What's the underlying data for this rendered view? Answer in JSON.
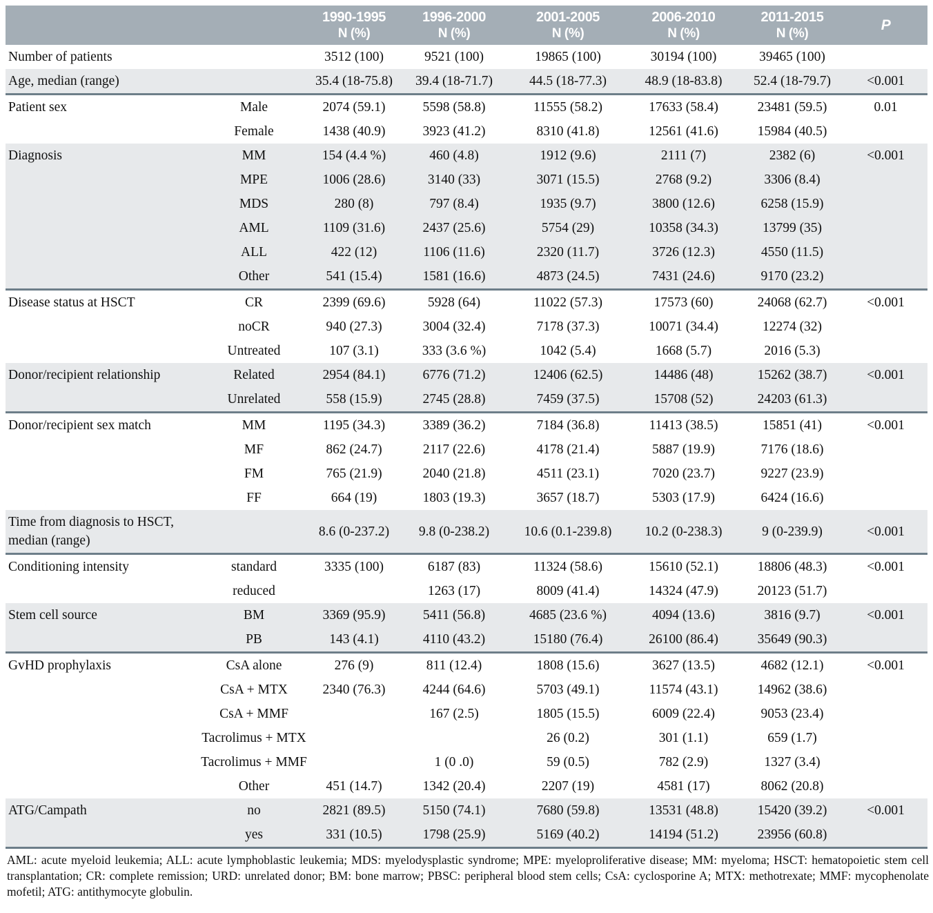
{
  "table": {
    "columns": [
      "1990-1995",
      "1996-2000",
      "2001-2005",
      "2006-2010",
      "2011-2015"
    ],
    "subheader": "N (%)",
    "p_label": "P",
    "groups": [
      {
        "label": "Number of patients",
        "shaded": false,
        "rows": [
          {
            "sub": "",
            "values": [
              "3512 (100)",
              "9521 (100)",
              "19865 (100)",
              "30194 (100)",
              "39465 (100)"
            ],
            "p": ""
          }
        ]
      },
      {
        "label": "Age, median (range)",
        "shaded": true,
        "rows": [
          {
            "sub": "",
            "values": [
              "35.4 (18-75.8)",
              "39.4 (18-71.7)",
              "44.5 (18-77.3)",
              "48.9 (18-83.8)",
              "52.4 (18-79.7)"
            ],
            "p": "<0.001"
          }
        ]
      },
      {
        "label": "Patient sex",
        "shaded": false,
        "rows": [
          {
            "sub": "Male",
            "values": [
              "2074 (59.1)",
              "5598 (58.8)",
              "11555 (58.2)",
              "17633 (58.4)",
              "23481 (59.5)"
            ],
            "p": "0.01"
          },
          {
            "sub": "Female",
            "values": [
              "1438 (40.9)",
              "3923 (41.2)",
              "8310 (41.8)",
              "12561 (41.6)",
              "15984 (40.5)"
            ],
            "p": ""
          }
        ]
      },
      {
        "label": "Diagnosis",
        "shaded": true,
        "rows": [
          {
            "sub": "MM",
            "values": [
              "154 (4.4 %)",
              "460 (4.8)",
              "1912 (9.6)",
              "2111 (7)",
              "2382 (6)"
            ],
            "p": "<0.001"
          },
          {
            "sub": "MPE",
            "values": [
              "1006 (28.6)",
              "3140 (33)",
              "3071 (15.5)",
              "2768 (9.2)",
              "3306 (8.4)"
            ],
            "p": ""
          },
          {
            "sub": "MDS",
            "values": [
              "280 (8)",
              "797 (8.4)",
              "1935 (9.7)",
              "3800 (12.6)",
              "6258 (15.9)"
            ],
            "p": ""
          },
          {
            "sub": "AML",
            "values": [
              "1109 (31.6)",
              "2437 (25.6)",
              "5754 (29)",
              "10358 (34.3)",
              "13799 (35)"
            ],
            "p": ""
          },
          {
            "sub": "ALL",
            "values": [
              "422 (12)",
              "1106 (11.6)",
              "2320 (11.7)",
              "3726 (12.3)",
              "4550 (11.5)"
            ],
            "p": ""
          },
          {
            "sub": "Other",
            "values": [
              "541 (15.4)",
              "1581 (16.6)",
              "4873 (24.5)",
              "7431 (24.6)",
              "9170 (23.2)"
            ],
            "p": ""
          }
        ]
      },
      {
        "label": "Disease status at HSCT",
        "shaded": false,
        "rows": [
          {
            "sub": "CR",
            "values": [
              "2399 (69.6)",
              "5928 (64)",
              "11022 (57.3)",
              "17573 (60)",
              "24068 (62.7)"
            ],
            "p": "<0.001"
          },
          {
            "sub": "noCR",
            "values": [
              "940 (27.3)",
              "3004 (32.4)",
              "7178 (37.3)",
              "10071 (34.4)",
              "12274 (32)"
            ],
            "p": ""
          },
          {
            "sub": "Untreated",
            "values": [
              "107 (3.1)",
              "333 (3.6 %)",
              "1042 (5.4)",
              "1668 (5.7)",
              "2016 (5.3)"
            ],
            "p": ""
          }
        ]
      },
      {
        "label": "Donor/recipient relationship",
        "shaded": true,
        "rows": [
          {
            "sub": "Related",
            "values": [
              "2954 (84.1)",
              "6776 (71.2)",
              "12406 (62.5)",
              "14486 (48)",
              "15262 (38.7)"
            ],
            "p": "<0.001"
          },
          {
            "sub": "Unrelated",
            "values": [
              "558 (15.9)",
              "2745 (28.8)",
              "7459 (37.5)",
              "15708 (52)",
              "24203 (61.3)"
            ],
            "p": ""
          }
        ]
      },
      {
        "label": "Donor/recipient sex match",
        "shaded": false,
        "rows": [
          {
            "sub": "MM",
            "values": [
              "1195 (34.3)",
              "3389 (36.2)",
              "7184 (36.8)",
              "11413 (38.5)",
              "15851 (41)"
            ],
            "p": "<0.001"
          },
          {
            "sub": "MF",
            "values": [
              "862 (24.7)",
              "2117 (22.6)",
              "4178 (21.4)",
              "5887 (19.9)",
              "7176 (18.6)"
            ],
            "p": ""
          },
          {
            "sub": "FM",
            "values": [
              "765 (21.9)",
              "2040 (21.8)",
              "4511 (23.1)",
              "7020 (23.7)",
              "9227 (23.9)"
            ],
            "p": ""
          },
          {
            "sub": "FF",
            "values": [
              "664 (19)",
              "1803 (19.3)",
              "3657 (18.7)",
              "5303 (17.9)",
              "6424 (16.6)"
            ],
            "p": ""
          }
        ]
      },
      {
        "label": "Time from diagnosis to HSCT, median (range)",
        "shaded": true,
        "rows": [
          {
            "sub": "",
            "values": [
              "8.6 (0-237.2)",
              "9.8 (0-238.2)",
              "10.6 (0.1-239.8)",
              "10.2 (0-238.3)",
              "9 (0-239.9)"
            ],
            "p": "<0.001"
          }
        ]
      },
      {
        "label": "Conditioning intensity",
        "shaded": false,
        "rows": [
          {
            "sub": "standard",
            "values": [
              "3335 (100)",
              "6187 (83)",
              "11324 (58.6)",
              "15610 (52.1)",
              "18806 (48.3)"
            ],
            "p": "<0.001"
          },
          {
            "sub": "reduced",
            "values": [
              "",
              "1263 (17)",
              "8009 (41.4)",
              "14324 (47.9)",
              "20123 (51.7)"
            ],
            "p": ""
          }
        ]
      },
      {
        "label": "Stem cell source",
        "shaded": true,
        "rows": [
          {
            "sub": "BM",
            "values": [
              "3369 (95.9)",
              "5411 (56.8)",
              "4685 (23.6 %)",
              "4094 (13.6)",
              "3816 (9.7)"
            ],
            "p": "<0.001"
          },
          {
            "sub": "PB",
            "values": [
              "143 (4.1)",
              "4110 (43.2)",
              "15180 (76.4)",
              "26100 (86.4)",
              "35649 (90.3)"
            ],
            "p": ""
          }
        ]
      },
      {
        "label": "GvHD prophylaxis",
        "shaded": false,
        "rows": [
          {
            "sub": "CsA alone",
            "values": [
              "276 (9)",
              "811 (12.4)",
              "1808 (15.6)",
              "3627 (13.5)",
              "4682 (12.1)"
            ],
            "p": "<0.001"
          },
          {
            "sub": "CsA + MTX",
            "values": [
              "2340 (76.3)",
              "4244 (64.6)",
              "5703 (49.1)",
              "11574 (43.1)",
              "14962 (38.6)"
            ],
            "p": ""
          },
          {
            "sub": "CsA + MMF",
            "values": [
              "",
              "167 (2.5)",
              "1805 (15.5)",
              "6009 (22.4)",
              "9053 (23.4)"
            ],
            "p": ""
          },
          {
            "sub": "Tacrolimus + MTX",
            "values": [
              "",
              "",
              "26 (0.2)",
              "301 (1.1)",
              "659 (1.7)"
            ],
            "p": ""
          },
          {
            "sub": "Tacrolimus + MMF",
            "values": [
              "",
              "1 (0 .0)",
              "59 (0.5)",
              "782 (2.9)",
              "1327 (3.4)"
            ],
            "p": ""
          },
          {
            "sub": "Other",
            "values": [
              "451 (14.7)",
              "1342 (20.4)",
              "2207 (19)",
              "4581 (17)",
              "8062 (20.8)"
            ],
            "p": ""
          }
        ]
      },
      {
        "label": "ATG/Campath",
        "shaded": true,
        "rows": [
          {
            "sub": "no",
            "values": [
              "2821 (89.5)",
              "5150 (74.1)",
              "7680 (59.8)",
              "13531 (48.8)",
              "15420 (39.2)"
            ],
            "p": "<0.001"
          },
          {
            "sub": "yes",
            "values": [
              "331 (10.5)",
              "1798 (25.9)",
              "5169 (40.2)",
              "14194 (51.2)",
              "23956 (60.8)"
            ],
            "p": ""
          }
        ]
      }
    ]
  },
  "footnote": "AML: acute myeloid leukemia; ALL: acute lymphoblastic leukemia; MDS: myelodysplastic syndrome; MPE: myeloproliferative disease; MM: myeloma; HSCT: hematopoietic stem cell transplantation; CR: complete remission; URD: unrelated donor; BM: bone marrow; PBSC: peripheral blood stem cells; CsA: cyclosporine A; MTX: methotrexate; MMF: mycophenolate mofetil; ATG: antithymocyte globulin.",
  "colors": {
    "header_bg": "#a4aeb6",
    "band_bg": "#e7e9eb",
    "separator": "#6d7e89"
  }
}
